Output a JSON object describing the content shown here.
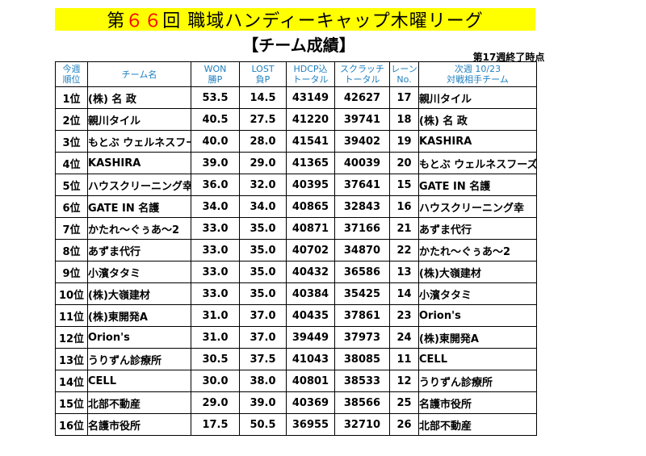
{
  "title": {
    "pre": "第",
    "num": "６６",
    "post": "回 職域ハンディーキャップ木曜リーグ"
  },
  "subtitle": "【チーム成績】",
  "asof": "第17週終了時点",
  "headers": [
    {
      "l1": "今週",
      "l2": "順位"
    },
    {
      "l1": "",
      "l2": "チーム名"
    },
    {
      "l1": "WON",
      "l2": "勝P"
    },
    {
      "l1": "LOST",
      "l2": "負P"
    },
    {
      "l1": "HDCP込",
      "l2": "トータル"
    },
    {
      "l1": "スクラッチ",
      "l2": "トータル"
    },
    {
      "l1": "レーン",
      "l2": "No."
    },
    {
      "l1": "次週 10/23",
      "l2": "対戦相手チーム"
    }
  ],
  "rows": [
    {
      "rank": "1位",
      "team": "(株) 名 政",
      "won": "53.5",
      "lost": "14.5",
      "hdcp": "43149",
      "scratch": "42627",
      "lane": "17",
      "opponent": "親川タイル"
    },
    {
      "rank": "2位",
      "team": "親川タイル",
      "won": "40.5",
      "lost": "27.5",
      "hdcp": "41220",
      "scratch": "39741",
      "lane": "18",
      "opponent": "(株) 名 政"
    },
    {
      "rank": "3位",
      "team": "もとぶ ウェルネスフーズ",
      "won": "40.0",
      "lost": "28.0",
      "hdcp": "41541",
      "scratch": "39402",
      "lane": "19",
      "opponent": "KASHIRA"
    },
    {
      "rank": "4位",
      "team": "KASHIRA",
      "won": "39.0",
      "lost": "29.0",
      "hdcp": "41365",
      "scratch": "40039",
      "lane": "20",
      "opponent": "もとぶ ウェルネスフーズ"
    },
    {
      "rank": "5位",
      "team": "ハウスクリーニング幸",
      "won": "36.0",
      "lost": "32.0",
      "hdcp": "40395",
      "scratch": "37641",
      "lane": "15",
      "opponent": "GATE IN 名護"
    },
    {
      "rank": "6位",
      "team": "GATE IN 名護",
      "won": "34.0",
      "lost": "34.0",
      "hdcp": "40865",
      "scratch": "32843",
      "lane": "16",
      "opponent": "ハウスクリーニング幸"
    },
    {
      "rank": "7位",
      "team": "かたれ～ぐぅあ～2",
      "won": "33.0",
      "lost": "35.0",
      "hdcp": "40871",
      "scratch": "37166",
      "lane": "21",
      "opponent": "あずま代行"
    },
    {
      "rank": "8位",
      "team": "あずま代行",
      "won": "33.0",
      "lost": "35.0",
      "hdcp": "40702",
      "scratch": "34870",
      "lane": "22",
      "opponent": "かたれ～ぐぅあ～2"
    },
    {
      "rank": "9位",
      "team": "小濱タタミ",
      "won": "33.0",
      "lost": "35.0",
      "hdcp": "40432",
      "scratch": "36586",
      "lane": "13",
      "opponent": "(株)大嶺建材"
    },
    {
      "rank": "10位",
      "team": "(株)大嶺建材",
      "won": "33.0",
      "lost": "35.0",
      "hdcp": "40384",
      "scratch": "35425",
      "lane": "14",
      "opponent": "小濱タタミ"
    },
    {
      "rank": "11位",
      "team": "(株)東開発A",
      "won": "31.0",
      "lost": "37.0",
      "hdcp": "40435",
      "scratch": "37861",
      "lane": "23",
      "opponent": "Orion's"
    },
    {
      "rank": "12位",
      "team": "Orion's",
      "won": "31.0",
      "lost": "37.0",
      "hdcp": "39449",
      "scratch": "37973",
      "lane": "24",
      "opponent": "(株)東開発A"
    },
    {
      "rank": "13位",
      "team": "うりずん診療所",
      "won": "30.5",
      "lost": "37.5",
      "hdcp": "41043",
      "scratch": "38085",
      "lane": "11",
      "opponent": "CELL"
    },
    {
      "rank": "14位",
      "team": "CELL",
      "won": "30.0",
      "lost": "38.0",
      "hdcp": "40801",
      "scratch": "38533",
      "lane": "12",
      "opponent": "うりずん診療所"
    },
    {
      "rank": "15位",
      "team": "北部不動産",
      "won": "29.0",
      "lost": "39.0",
      "hdcp": "40369",
      "scratch": "38566",
      "lane": "25",
      "opponent": "名護市役所"
    },
    {
      "rank": "16位",
      "team": "名護市役所",
      "won": "17.5",
      "lost": "50.5",
      "hdcp": "36955",
      "scratch": "32710",
      "lane": "26",
      "opponent": "北部不動産"
    }
  ],
  "colors": {
    "title_band": "#ffff00",
    "accent": "#ff0000",
    "header_text": "#1f7fbf"
  }
}
